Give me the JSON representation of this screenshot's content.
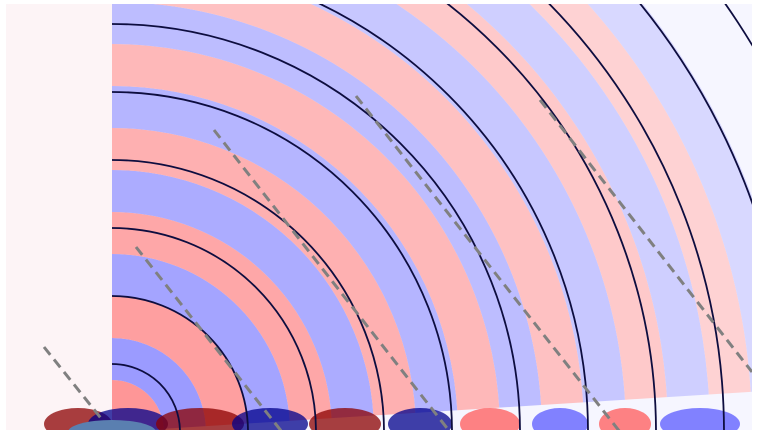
{
  "figure": {
    "kind": "wave field contour visualization",
    "colors": {
      "positive_strong": "#8b0000",
      "positive_mid": "#ff5a5a",
      "positive_weak": "#ffd6d6",
      "negative_strong": "#00008b",
      "negative_mid": "#5a5aff",
      "negative_weak": "#d8d8ff",
      "arc": "#0d0d3f",
      "dashed_line": "#808080",
      "source_blob": "#5a7fb0",
      "background": "#ffffff"
    },
    "arc_count": 11,
    "dashed_line_count": 5,
    "color_rings": 16,
    "text_labels": []
  }
}
